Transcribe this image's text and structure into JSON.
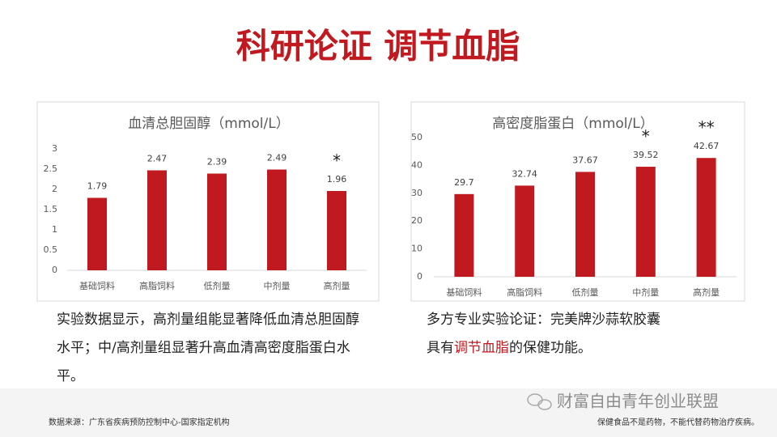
{
  "slide": {
    "title": "科研论证 调节血脂",
    "caption_left": "实验数据显示，高剂量组能显著降低血清总胆固醇水平；中/高剂量组显著升高血清高密度脂蛋白水平。",
    "caption_right": {
      "before": "多方专业实验论证：完美牌沙蒜软胶囊具有",
      "highlight": "调节血脂",
      "after": "的保健功能。"
    },
    "source": "数据来源：广东省疾病预防控制中心-国家指定机构",
    "watermark": "财富自由青年创业联盟",
    "disclaimer": "保健食品不是药物，不能代替药物治疗疾病。"
  },
  "chart_data": [
    {
      "type": "bar",
      "title": "血清总胆固醇（mmol/L）",
      "categories": [
        "基础饲料",
        "高脂饲料",
        "低剂量",
        "中剂量",
        "高剂量"
      ],
      "values": [
        1.79,
        2.47,
        2.39,
        2.49,
        1.96
      ],
      "color": "#c0191f",
      "ylim": [
        0,
        3
      ],
      "yticks": [
        0,
        0.5,
        1,
        1.5,
        2,
        2.5,
        3
      ],
      "grid": false,
      "annotations": [
        {
          "text": "*",
          "category": "高剂量"
        }
      ]
    },
    {
      "type": "bar",
      "title": "高密度脂蛋白（mmol/L）",
      "categories": [
        "基础饲料",
        "高脂饲料",
        "低剂量",
        "中剂量",
        "高剂量"
      ],
      "values": [
        29.7,
        32.74,
        37.67,
        39.52,
        42.67
      ],
      "color": "#c0191f",
      "ylim": [
        0,
        50
      ],
      "yticks": [
        0,
        10,
        20,
        30,
        40,
        50
      ],
      "grid": false,
      "annotations": [
        {
          "text": "*",
          "category": "中剂量"
        },
        {
          "text": "**",
          "category": "高剂量"
        }
      ]
    }
  ]
}
